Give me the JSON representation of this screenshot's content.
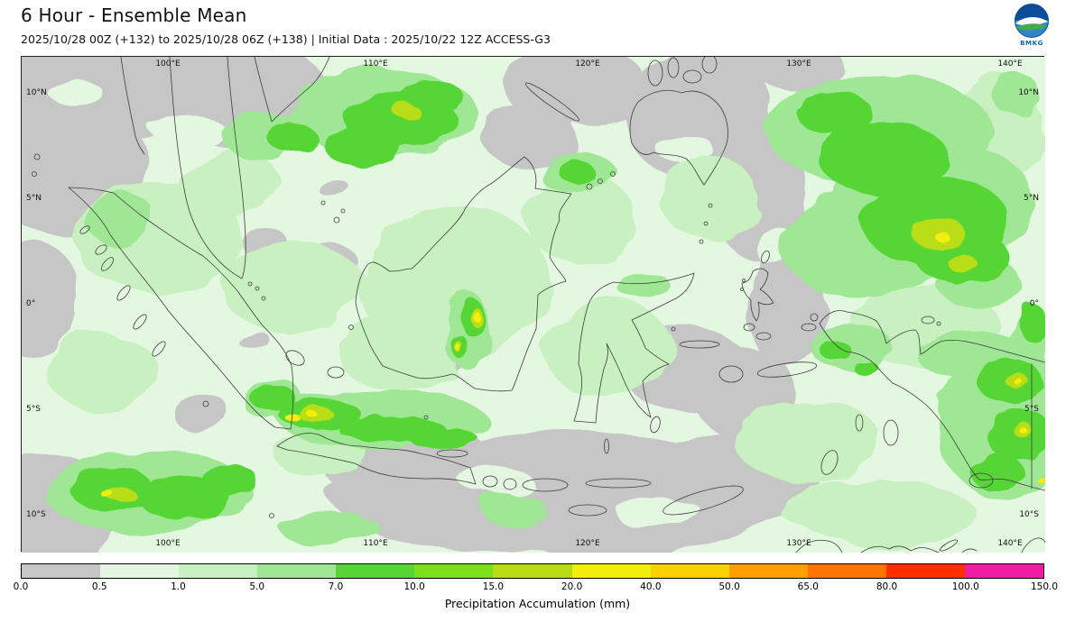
{
  "header": {
    "title": "6 Hour - Ensemble Mean",
    "subtitle": "2025/10/28 00Z (+132) to 2025/10/28 06Z (+138) | Initial Data : 2025/10/22 12Z ACCESS-G3"
  },
  "logo": {
    "label": "BMKG"
  },
  "map": {
    "lon_ticks": [
      "100°E",
      "110°E",
      "120°E",
      "130°E",
      "140°E"
    ],
    "lat_ticks": [
      "10°N",
      "5°N",
      "0°",
      "5°S",
      "10°S"
    ]
  },
  "colorbar": {
    "label": "Precipitation Accumulation (mm)",
    "ticks": [
      "0.0",
      "0.5",
      "1.0",
      "5.0",
      "7.0",
      "10.0",
      "15.0",
      "20.0",
      "40.0",
      "50.0",
      "65.0",
      "80.0",
      "100.0",
      "150.0"
    ],
    "colors": [
      "#c6c6c6",
      "#e4f7e0",
      "#c8f0c0",
      "#9fe795",
      "#55d636",
      "#79e01c",
      "#b9dd12",
      "#f3ee0b",
      "#ffcf00",
      "#ffa000",
      "#ff7300",
      "#ff2e00",
      "#ef1ca8"
    ]
  }
}
